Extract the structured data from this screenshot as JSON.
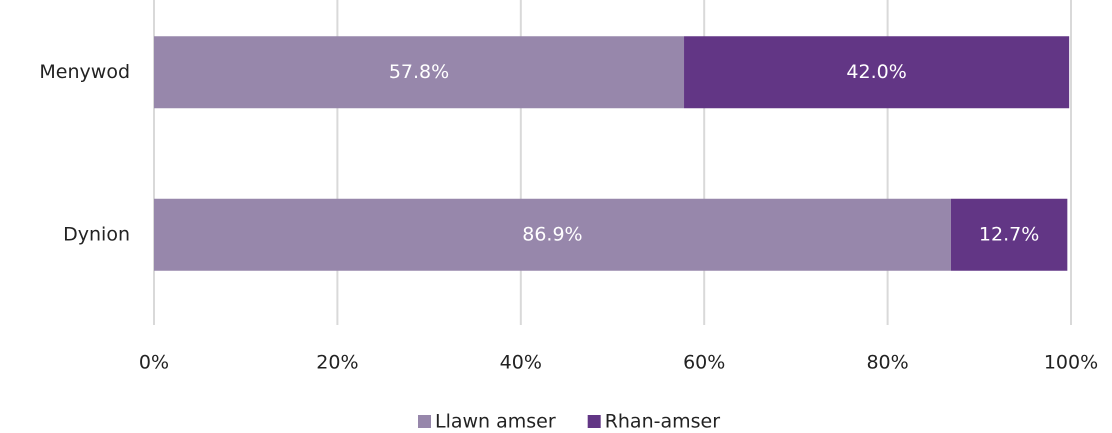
{
  "chart_data": {
    "type": "stacked-barh",
    "categories": [
      "Menywod",
      "Dynion"
    ],
    "series": [
      {
        "name": "Llawn amser",
        "color": "#9787ab",
        "values": [
          57.8,
          86.9
        ],
        "value_labels": [
          "57.8%",
          "86.9%"
        ]
      },
      {
        "name": "Rhan-amser",
        "color": "#623685",
        "values": [
          42.0,
          12.7
        ],
        "value_labels": [
          "42.0%",
          "12.7%"
        ]
      }
    ],
    "xlim": [
      0,
      100
    ],
    "xticks": [
      {
        "value": 0,
        "label": "0%"
      },
      {
        "value": 20,
        "label": "20%"
      },
      {
        "value": 40,
        "label": "40%"
      },
      {
        "value": 60,
        "label": "60%"
      },
      {
        "value": 80,
        "label": "80%"
      },
      {
        "value": 100,
        "label": "100%"
      }
    ],
    "grid": true,
    "legend": "bottom"
  }
}
